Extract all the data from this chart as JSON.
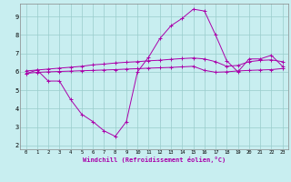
{
  "xlabel": "Windchill (Refroidissement éolien,°C)",
  "xlim": [
    -0.5,
    23.5
  ],
  "ylim": [
    1.8,
    9.7
  ],
  "yticks": [
    2,
    3,
    4,
    5,
    6,
    7,
    8,
    9
  ],
  "xticks": [
    0,
    1,
    2,
    3,
    4,
    5,
    6,
    7,
    8,
    9,
    10,
    11,
    12,
    13,
    14,
    15,
    16,
    17,
    18,
    19,
    20,
    21,
    22,
    23
  ],
  "bg_color": "#c8eef0",
  "line_color": "#aa00aa",
  "grid_color": "#99cccc",
  "curve1_x": [
    0,
    1,
    2,
    3,
    4,
    5,
    6,
    7,
    8,
    9,
    10,
    11,
    12,
    13,
    14,
    15,
    16,
    17,
    18,
    19,
    20,
    21,
    22,
    23
  ],
  "curve1_y": [
    5.9,
    6.1,
    5.5,
    5.5,
    4.5,
    3.7,
    3.3,
    2.8,
    2.5,
    3.3,
    6.0,
    6.8,
    7.8,
    8.5,
    8.9,
    9.4,
    9.3,
    8.0,
    6.6,
    6.0,
    6.7,
    6.7,
    6.9,
    6.3
  ],
  "curve2_x": [
    0,
    1,
    2,
    3,
    4,
    5,
    6,
    7,
    8,
    9,
    10,
    11,
    12,
    13,
    14,
    15,
    16,
    17,
    18,
    19,
    20,
    21,
    22,
    23
  ],
  "curve2_y": [
    6.05,
    6.1,
    6.15,
    6.2,
    6.25,
    6.3,
    6.38,
    6.42,
    6.48,
    6.52,
    6.55,
    6.6,
    6.63,
    6.68,
    6.72,
    6.75,
    6.7,
    6.55,
    6.3,
    6.35,
    6.55,
    6.62,
    6.65,
    6.55
  ],
  "curve3_x": [
    0,
    1,
    2,
    3,
    4,
    5,
    6,
    7,
    8,
    9,
    10,
    11,
    12,
    13,
    14,
    15,
    16,
    17,
    18,
    19,
    20,
    21,
    22,
    23
  ],
  "curve3_y": [
    5.92,
    5.97,
    6.0,
    6.02,
    6.04,
    6.06,
    6.08,
    6.1,
    6.12,
    6.15,
    6.17,
    6.2,
    6.22,
    6.24,
    6.27,
    6.3,
    6.08,
    5.98,
    6.0,
    6.05,
    6.08,
    6.1,
    6.12,
    6.18
  ]
}
